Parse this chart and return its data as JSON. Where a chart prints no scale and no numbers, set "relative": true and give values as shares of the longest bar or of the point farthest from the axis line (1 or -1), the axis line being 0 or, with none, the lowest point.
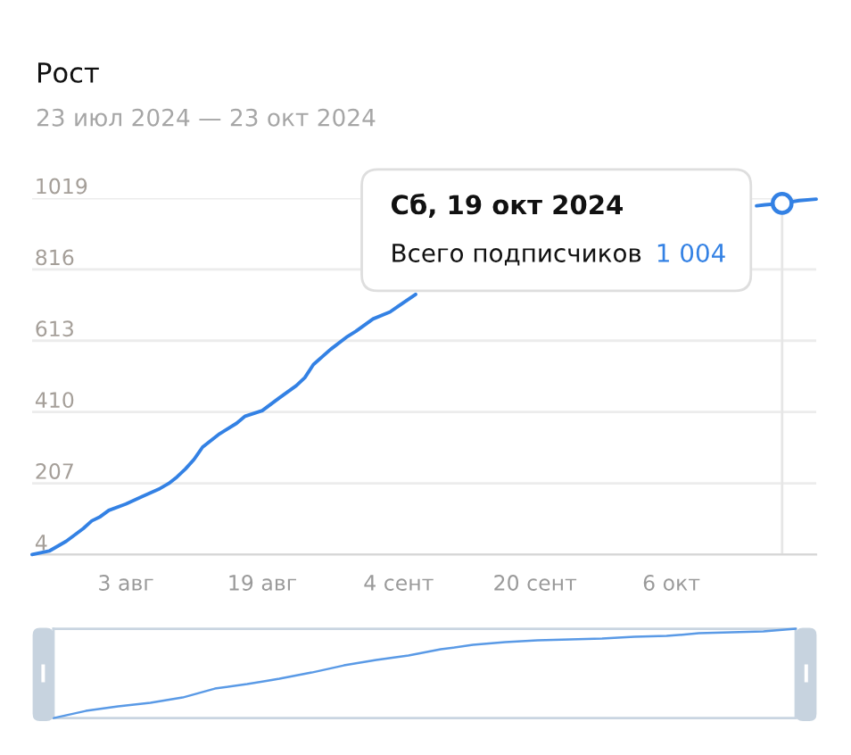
{
  "chart_data": [
    {
      "type": "line",
      "title": "Рост",
      "subtitle": "23 июл 2024 — 23 окт 2024",
      "xlim": [
        "2024-07-23",
        "2024-10-23"
      ],
      "xticks": [
        {
          "value": "2024-08-03",
          "label": "3 авг"
        },
        {
          "value": "2024-08-19",
          "label": "19 авг"
        },
        {
          "value": "2024-09-04",
          "label": "4 сент"
        },
        {
          "value": "2024-09-20",
          "label": "20 сент"
        },
        {
          "value": "2024-10-06",
          "label": "6 окт"
        }
      ],
      "ylim": [
        4,
        1019
      ],
      "yticks": [
        4,
        207,
        410,
        613,
        816,
        1019
      ],
      "grid": "y",
      "ref_lines": [
        {
          "axis": "x",
          "value": "2024-10-19",
          "color": "#e6e6e6"
        }
      ],
      "annotations": [
        "Сб, 19 окт 2024",
        "Всего подписчиков",
        "1 004"
      ],
      "series": [
        {
          "color": "#3381e4",
          "x": [
            "2024-07-23",
            "2024-07-25",
            "2024-07-27",
            "2024-07-29",
            "2024-07-30",
            "2024-07-31",
            "2024-08-01",
            "2024-08-03",
            "2024-08-05",
            "2024-08-07",
            "2024-08-08",
            "2024-08-09",
            "2024-08-10",
            "2024-08-11",
            "2024-08-12",
            "2024-08-14",
            "2024-08-16",
            "2024-08-17",
            "2024-08-19",
            "2024-08-21",
            "2024-08-23",
            "2024-08-24",
            "2024-08-25",
            "2024-08-27",
            "2024-08-29",
            "2024-08-30",
            "2024-09-01",
            "2024-09-03",
            "2024-09-04",
            "2024-09-06",
            "2024-09-07",
            "2024-10-16",
            "2024-10-17",
            "2024-10-19",
            "2024-10-21",
            "2024-10-23"
          ],
          "values": [
            4,
            14,
            42,
            78,
            100,
            112,
            130,
            148,
            170,
            192,
            206,
            225,
            248,
            275,
            310,
            348,
            378,
            398,
            414,
            450,
            485,
            508,
            545,
            588,
            625,
            640,
            675,
            695,
            712,
            745,
            null,
            997,
            1000,
            1004,
            1012,
            1016
          ]
        },
        {
          "type": "scatter",
          "color": "#3381e4",
          "marker": "circle",
          "x": [
            "2024-10-19"
          ],
          "values": [
            1004
          ]
        }
      ]
    },
    {
      "type": "line",
      "relative": true,
      "categories": [
        null,
        null,
        null,
        null,
        null,
        null,
        null,
        null,
        null,
        null,
        null,
        null,
        null,
        null,
        null,
        null,
        null,
        null,
        null,
        null,
        null,
        null,
        null,
        null
      ],
      "series": [
        {
          "color": "#5a9ae6",
          "values": [
            0,
            0.08,
            0.13,
            0.17,
            0.23,
            0.33,
            0.38,
            0.44,
            0.51,
            0.59,
            0.65,
            0.7,
            0.77,
            0.82,
            0.85,
            0.87,
            0.88,
            0.89,
            0.91,
            0.92,
            0.95,
            0.96,
            0.97,
            1.0
          ]
        }
      ]
    }
  ]
}
